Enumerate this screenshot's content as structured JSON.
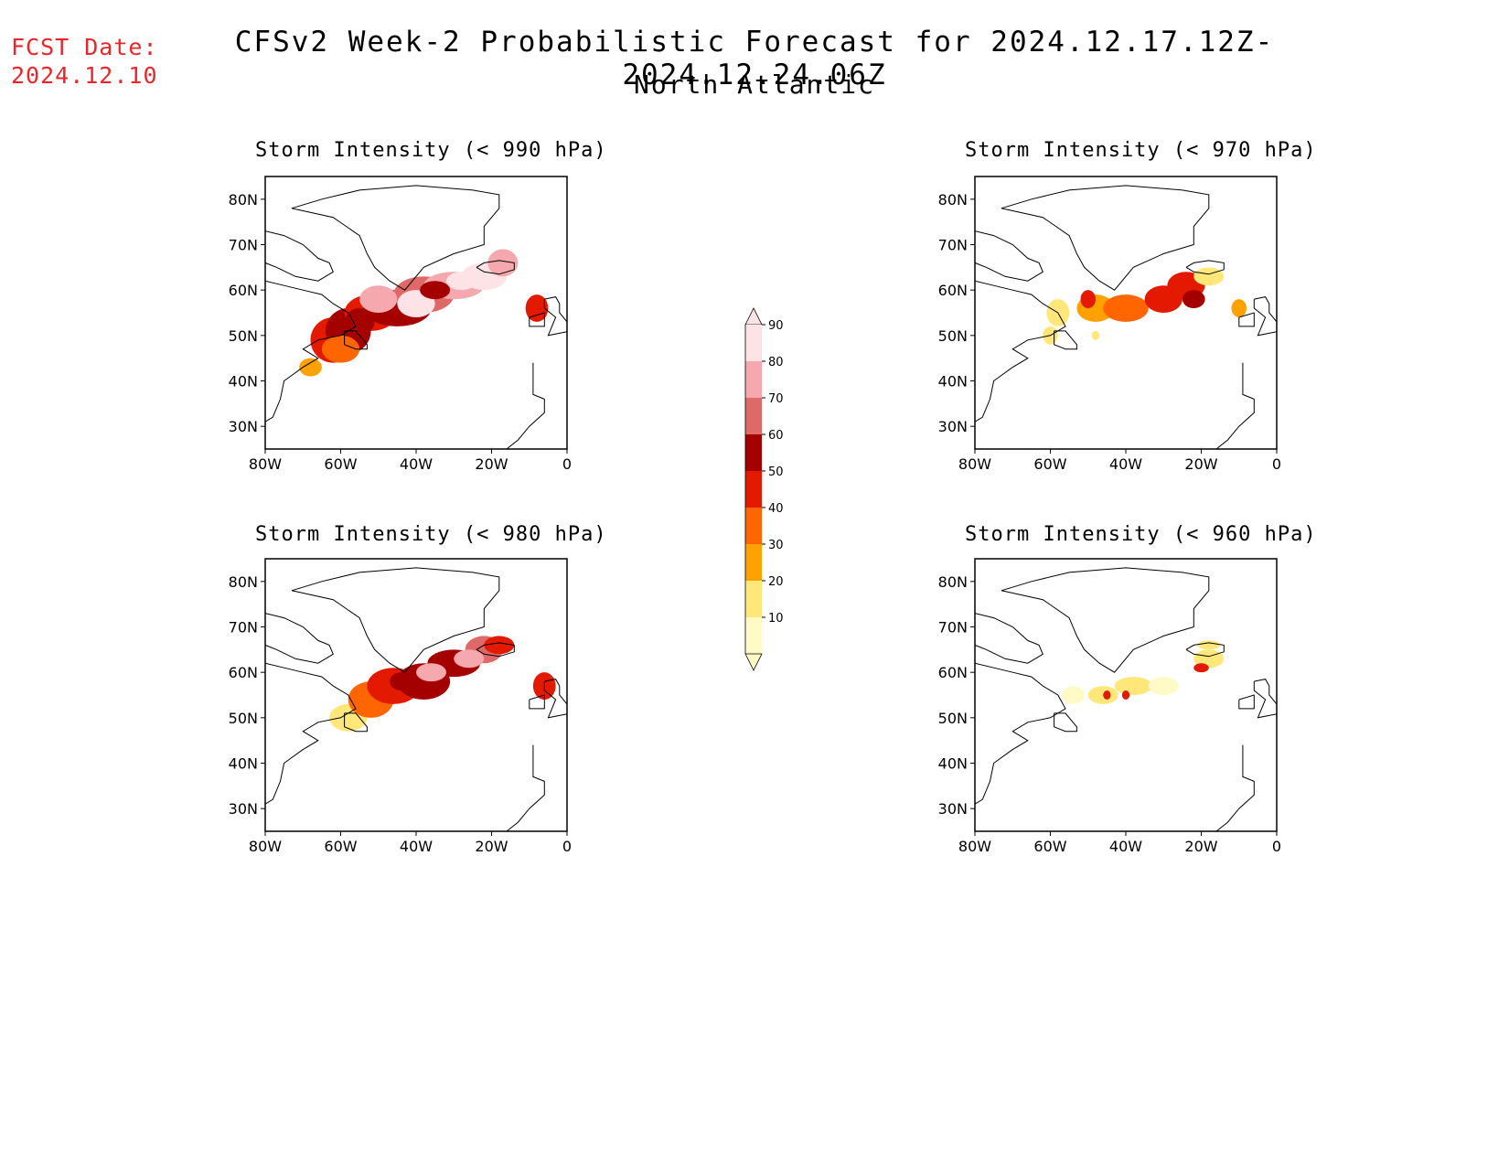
{
  "header": {
    "fcst_label": "FCST Date:",
    "fcst_date": "2024.12.10",
    "title": "CFSv2 Week-2 Probabilistic Forecast for 2024.12.17.12Z-2024.12.24.06Z",
    "subtitle": "North Atlantic"
  },
  "axes": {
    "lat_labels": [
      "80N",
      "70N",
      "60N",
      "50N",
      "40N",
      "30N"
    ],
    "lon_labels": [
      "80W",
      "60W",
      "40W",
      "20W",
      "0"
    ],
    "lat_values": [
      80,
      70,
      60,
      50,
      40,
      30
    ],
    "lon_values": [
      -80,
      -60,
      -40,
      -20,
      0
    ]
  },
  "panels": [
    {
      "title": "Storm Intensity (< 990 hPa)"
    },
    {
      "title": "Storm Intensity (< 970 hPa)"
    },
    {
      "title": "Storm Intensity (< 980 hPa)"
    },
    {
      "title": "Storm Intensity (< 960 hPa)"
    }
  ],
  "colorbar": {
    "levels": [
      "10",
      "20",
      "30",
      "40",
      "50",
      "60",
      "70",
      "80",
      "90"
    ],
    "colors": [
      "#fffac6",
      "#ffe77a",
      "#ffa100",
      "#ff6500",
      "#e41a00",
      "#a50000",
      "#df6868",
      "#f5a8ad",
      "#fde3e6"
    ]
  }
}
